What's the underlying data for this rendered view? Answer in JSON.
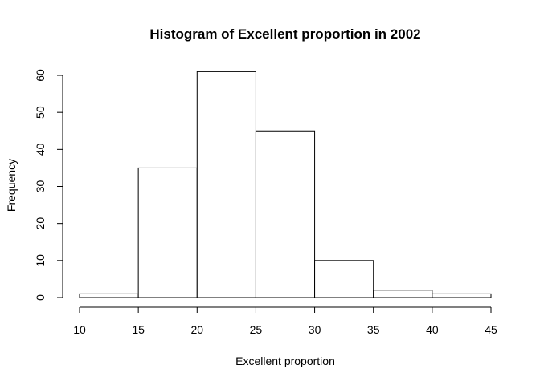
{
  "chart_data": {
    "type": "bar",
    "title": "Histogram of Excellent proportion in 2002",
    "xlabel": "Excellent proportion",
    "ylabel": "Frequency",
    "bins": [
      {
        "from": 10,
        "to": 15,
        "count": 1
      },
      {
        "from": 15,
        "to": 20,
        "count": 35
      },
      {
        "from": 20,
        "to": 25,
        "count": 61
      },
      {
        "from": 25,
        "to": 30,
        "count": 45
      },
      {
        "from": 30,
        "to": 35,
        "count": 10
      },
      {
        "from": 35,
        "to": 40,
        "count": 2
      },
      {
        "from": 40,
        "to": 45,
        "count": 1
      }
    ],
    "x_ticks": [
      "10",
      "15",
      "20",
      "25",
      "30",
      "35",
      "40",
      "45"
    ],
    "y_ticks": [
      "0",
      "10",
      "20",
      "30",
      "40",
      "50",
      "60"
    ],
    "xlim": [
      10,
      45
    ],
    "ylim": [
      0,
      60
    ],
    "grid": false,
    "legend": "none",
    "bar_fill": "#ffffff",
    "bar_stroke": "#000000"
  }
}
